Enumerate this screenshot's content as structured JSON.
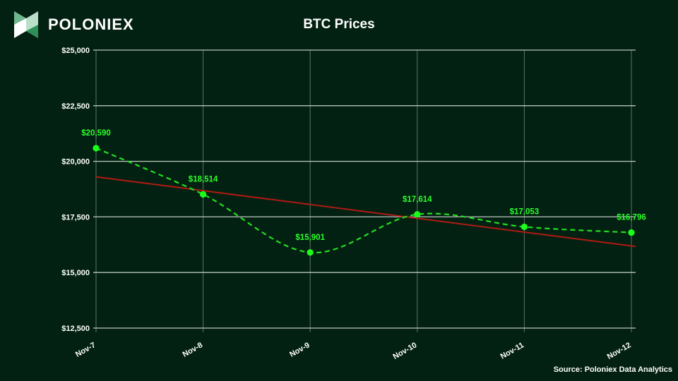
{
  "brand": {
    "name": "POLONIEX",
    "logo_icon": "poloniex-logo-icon"
  },
  "colors": {
    "background": "#032112",
    "grid": "#cfd6d0",
    "series": "#22dd22",
    "marker": "#1aff1a",
    "label": "#2bff2b",
    "trend": "#b01a14",
    "text": "#ffffff"
  },
  "source": "Source: Poloniex Data Analytics",
  "chart_data": {
    "type": "line",
    "title": "BTC Prices",
    "xlabel": "",
    "ylabel": "",
    "categories": [
      "Nov-7",
      "Nov-8",
      "Nov-9",
      "Nov-10",
      "Nov-11",
      "Nov-12"
    ],
    "series": [
      {
        "values": [
          20590,
          18514,
          15901,
          17614,
          17053,
          16796
        ],
        "labels": [
          "$20,590",
          "$18,514",
          "$15,901",
          "$17,614",
          "$17,053",
          "$16,796"
        ],
        "style": "dashed-smooth"
      }
    ],
    "trendline": {
      "start": 19300,
      "end": 16170
    },
    "ylim": [
      12500,
      25000
    ],
    "yticks": [
      12500,
      15000,
      17500,
      20000,
      22500,
      25000
    ],
    "ytick_labels": [
      "$12,500",
      "$15,000",
      "$17,500",
      "$20,000",
      "$22,500",
      "$25,000"
    ],
    "grid": true,
    "legend": "none"
  }
}
